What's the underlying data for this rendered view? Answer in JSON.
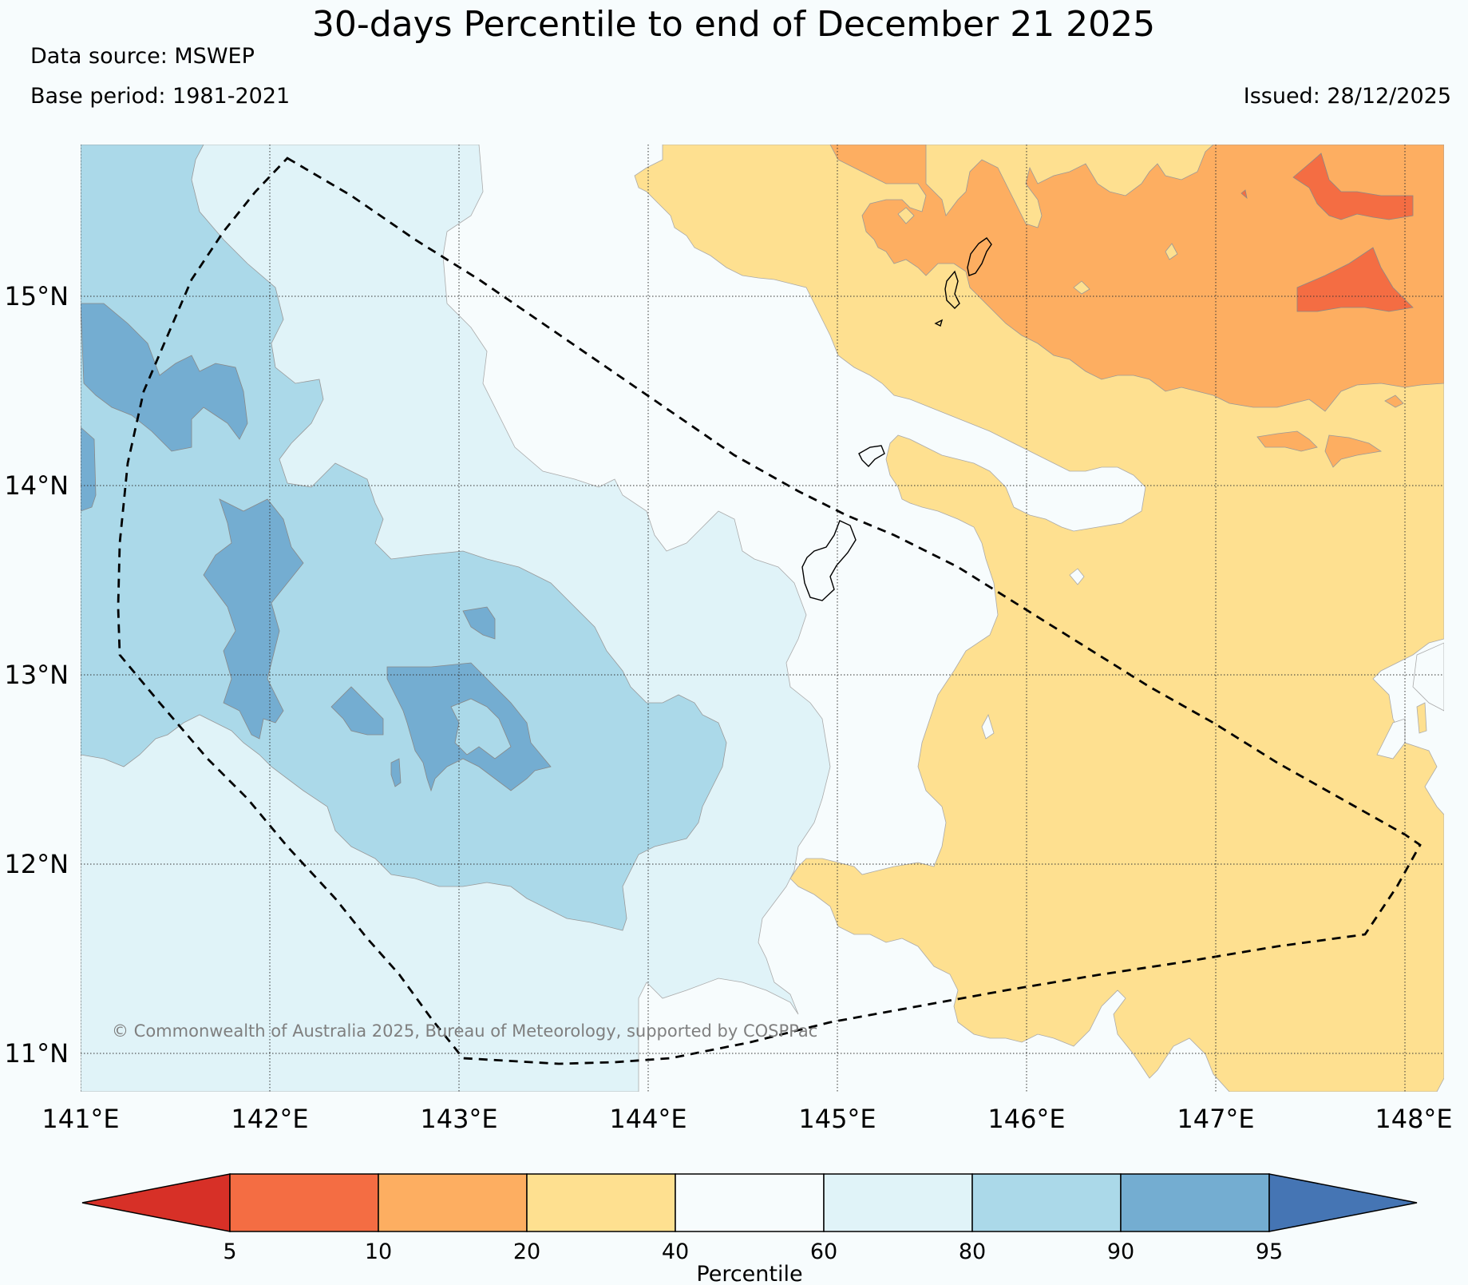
{
  "header": {
    "title": "30-days Percentile to end of December 21 2025",
    "data_source": "Data source: MSWEP",
    "base_period": "Base period: 1981-2021",
    "issued": "Issued: 28/12/2025"
  },
  "map": {
    "lon_ticks": [
      "141°E",
      "142°E",
      "143°E",
      "144°E",
      "145°E",
      "146°E",
      "147°E",
      "148°E"
    ],
    "lat_ticks": [
      "15°N",
      "14°N",
      "13°N",
      "12°N",
      "11°N"
    ],
    "lon_values": [
      141,
      142,
      143,
      144,
      145,
      146,
      147,
      148
    ],
    "lat_values": [
      15,
      14,
      13,
      12,
      11
    ],
    "lon_range": [
      141,
      148.2
    ],
    "lat_range": [
      10.8,
      15.8
    ],
    "copyright": "© Commonwealth of Australia 2025, Bureau of Meteorology, supported by COSPPac"
  },
  "legend": {
    "label": "Percentile",
    "ticks": [
      "5",
      "10",
      "20",
      "40",
      "60",
      "80",
      "90",
      "95"
    ],
    "colors": [
      "#d73027",
      "#f46d43",
      "#fdae61",
      "#fee090",
      "#f7fcfd",
      "#e0f3f8",
      "#abd9e9",
      "#74add1",
      "#4575b4"
    ]
  }
}
